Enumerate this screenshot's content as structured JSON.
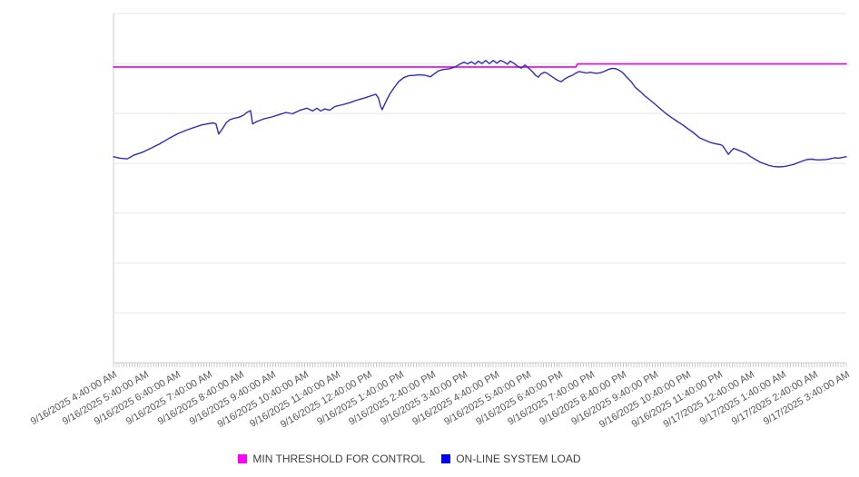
{
  "chart_data": {
    "type": "line",
    "title": "",
    "x_axis": {
      "unit": "minutes since 9/16/2025 4:40:00 AM",
      "domain": [
        0,
        1380
      ],
      "major_tick_interval_minutes": 60,
      "minor_tick_interval_minutes": 5,
      "label_rotation_deg": -30,
      "tick_labels": [
        "9/16/2025 4:40:00 AM",
        "9/16/2025 5:40:00 AM",
        "9/16/2025 6:40:00 AM",
        "9/16/2025 7:40:00 AM",
        "9/16/2025 8:40:00 AM",
        "9/16/2025 9:40:00 AM",
        "9/16/2025 10:40:00 AM",
        "9/16/2025 11:40:00 AM",
        "9/16/2025 12:40:00 PM",
        "9/16/2025 1:40:00 PM",
        "9/16/2025 2:40:00 PM",
        "9/16/2025 3:40:00 PM",
        "9/16/2025 4:40:00 PM",
        "9/16/2025 5:40:00 PM",
        "9/16/2025 6:40:00 PM",
        "9/16/2025 7:40:00 PM",
        "9/16/2025 8:40:00 PM",
        "9/16/2025 9:40:00 PM",
        "9/16/2025 10:40:00 PM",
        "9/16/2025 11:40:00 PM",
        "9/17/2025 12:40:00 AM",
        "9/17/2025 1:40:00 AM",
        "9/17/2025 2:40:00 AM",
        "9/17/2025 3:40:00 AM"
      ]
    },
    "y_axis": {
      "labels_visible": false,
      "domain": [
        0,
        100
      ],
      "unit": "relative load (estimated from gridlines, no labels shown)",
      "gridline_intervals": 7,
      "grid_on": true
    },
    "legend_position": "bottom",
    "series": [
      {
        "name": "MIN THRESHOLD FOR CONTROL",
        "color": "#e800e8",
        "swatch_color": "#ff00ff",
        "stroke_width": 1.6,
        "points": [
          [
            0,
            84.7
          ],
          [
            871,
            84.7
          ],
          [
            874,
            85.6
          ],
          [
            1380,
            85.6
          ]
        ]
      },
      {
        "name": "ON-LINE SYSTEM LOAD",
        "color": "#2b2bc2",
        "swatch_color": "#0000f2",
        "stroke_width": 1.4,
        "points": [
          [
            0,
            59.0
          ],
          [
            12,
            58.6
          ],
          [
            26,
            58.4
          ],
          [
            39,
            59.5
          ],
          [
            55,
            60.3
          ],
          [
            70,
            61.4
          ],
          [
            87,
            62.7
          ],
          [
            104,
            64.2
          ],
          [
            121,
            65.6
          ],
          [
            137,
            66.6
          ],
          [
            152,
            67.4
          ],
          [
            166,
            68.1
          ],
          [
            176,
            68.4
          ],
          [
            188,
            68.7
          ],
          [
            193,
            68.4
          ],
          [
            198,
            65.5
          ],
          [
            205,
            67.0
          ],
          [
            212,
            68.7
          ],
          [
            219,
            69.6
          ],
          [
            227,
            70.0
          ],
          [
            236,
            70.3
          ],
          [
            245,
            70.9
          ],
          [
            251,
            71.7
          ],
          [
            258,
            72.2
          ],
          [
            262,
            68.4
          ],
          [
            270,
            69.1
          ],
          [
            284,
            69.9
          ],
          [
            298,
            70.4
          ],
          [
            311,
            71.0
          ],
          [
            325,
            71.7
          ],
          [
            337,
            71.3
          ],
          [
            351,
            72.3
          ],
          [
            364,
            72.9
          ],
          [
            375,
            72.1
          ],
          [
            383,
            72.9
          ],
          [
            390,
            72.1
          ],
          [
            398,
            72.7
          ],
          [
            407,
            72.3
          ],
          [
            417,
            73.4
          ],
          [
            431,
            73.9
          ],
          [
            445,
            74.5
          ],
          [
            458,
            75.2
          ],
          [
            472,
            75.8
          ],
          [
            486,
            76.5
          ],
          [
            494,
            76.9
          ],
          [
            499,
            75.8
          ],
          [
            503,
            73.5
          ],
          [
            506,
            72.5
          ],
          [
            513,
            74.8
          ],
          [
            520,
            76.9
          ],
          [
            528,
            78.7
          ],
          [
            537,
            80.5
          ],
          [
            546,
            81.6
          ],
          [
            556,
            82.2
          ],
          [
            566,
            82.3
          ],
          [
            576,
            82.5
          ],
          [
            587,
            82.3
          ],
          [
            597,
            81.9
          ],
          [
            604,
            82.7
          ],
          [
            612,
            83.6
          ],
          [
            622,
            84.0
          ],
          [
            633,
            84.2
          ],
          [
            643,
            84.7
          ],
          [
            652,
            85.5
          ],
          [
            660,
            86.1
          ],
          [
            667,
            85.6
          ],
          [
            674,
            86.2
          ],
          [
            681,
            85.5
          ],
          [
            687,
            86.4
          ],
          [
            694,
            85.7
          ],
          [
            701,
            86.6
          ],
          [
            708,
            85.7
          ],
          [
            715,
            86.6
          ],
          [
            722,
            85.8
          ],
          [
            729,
            86.6
          ],
          [
            735,
            86.2
          ],
          [
            742,
            85.5
          ],
          [
            747,
            86.4
          ],
          [
            754,
            85.8
          ],
          [
            761,
            84.9
          ],
          [
            768,
            84.4
          ],
          [
            775,
            85.3
          ],
          [
            781,
            84.5
          ],
          [
            788,
            83.5
          ],
          [
            795,
            82.3
          ],
          [
            800,
            81.8
          ],
          [
            805,
            82.7
          ],
          [
            811,
            83.2
          ],
          [
            816,
            83.0
          ],
          [
            822,
            82.3
          ],
          [
            829,
            81.6
          ],
          [
            836,
            80.9
          ],
          [
            843,
            80.5
          ],
          [
            850,
            81.3
          ],
          [
            857,
            81.9
          ],
          [
            864,
            82.3
          ],
          [
            870,
            82.9
          ],
          [
            877,
            83.4
          ],
          [
            884,
            83.2
          ],
          [
            891,
            83.0
          ],
          [
            898,
            83.2
          ],
          [
            905,
            83.0
          ],
          [
            911,
            82.9
          ],
          [
            918,
            83.1
          ],
          [
            925,
            83.5
          ],
          [
            932,
            84.0
          ],
          [
            939,
            84.3
          ],
          [
            946,
            84.2
          ],
          [
            952,
            83.8
          ],
          [
            959,
            83.1
          ],
          [
            966,
            81.9
          ],
          [
            975,
            80.5
          ],
          [
            983,
            78.8
          ],
          [
            992,
            77.7
          ],
          [
            1000,
            76.5
          ],
          [
            1011,
            75.2
          ],
          [
            1021,
            73.9
          ],
          [
            1031,
            72.6
          ],
          [
            1041,
            71.3
          ],
          [
            1052,
            70.1
          ],
          [
            1062,
            69.1
          ],
          [
            1072,
            68.1
          ],
          [
            1082,
            67.0
          ],
          [
            1093,
            65.8
          ],
          [
            1103,
            64.5
          ],
          [
            1113,
            63.8
          ],
          [
            1124,
            63.1
          ],
          [
            1134,
            62.7
          ],
          [
            1142,
            62.5
          ],
          [
            1147,
            62.2
          ],
          [
            1153,
            60.8
          ],
          [
            1158,
            59.7
          ],
          [
            1163,
            60.6
          ],
          [
            1168,
            61.4
          ],
          [
            1175,
            61.0
          ],
          [
            1183,
            60.5
          ],
          [
            1192,
            59.9
          ],
          [
            1200,
            59.0
          ],
          [
            1209,
            58.2
          ],
          [
            1217,
            57.5
          ],
          [
            1226,
            57.0
          ],
          [
            1235,
            56.5
          ],
          [
            1243,
            56.2
          ],
          [
            1253,
            56.1
          ],
          [
            1264,
            56.2
          ],
          [
            1272,
            56.5
          ],
          [
            1281,
            56.8
          ],
          [
            1289,
            57.3
          ],
          [
            1298,
            57.8
          ],
          [
            1306,
            58.2
          ],
          [
            1315,
            58.3
          ],
          [
            1324,
            58.1
          ],
          [
            1332,
            58.1
          ],
          [
            1341,
            58.2
          ],
          [
            1349,
            58.4
          ],
          [
            1358,
            58.7
          ],
          [
            1366,
            58.6
          ],
          [
            1373,
            58.8
          ],
          [
            1380,
            59.0
          ]
        ]
      }
    ],
    "colors": {
      "gridline": "#e7e7e7",
      "axis_line": "#cccccc",
      "minor_tick": "#cccccc",
      "axis_label_text": "#565656",
      "legend_text": "#3f3f3f",
      "background": "#ffffff"
    }
  },
  "legend": {
    "items": [
      {
        "label": "MIN THRESHOLD FOR CONTROL",
        "color": "#ff00ff"
      },
      {
        "label": "ON-LINE SYSTEM LOAD",
        "color": "#0000f2"
      }
    ]
  }
}
